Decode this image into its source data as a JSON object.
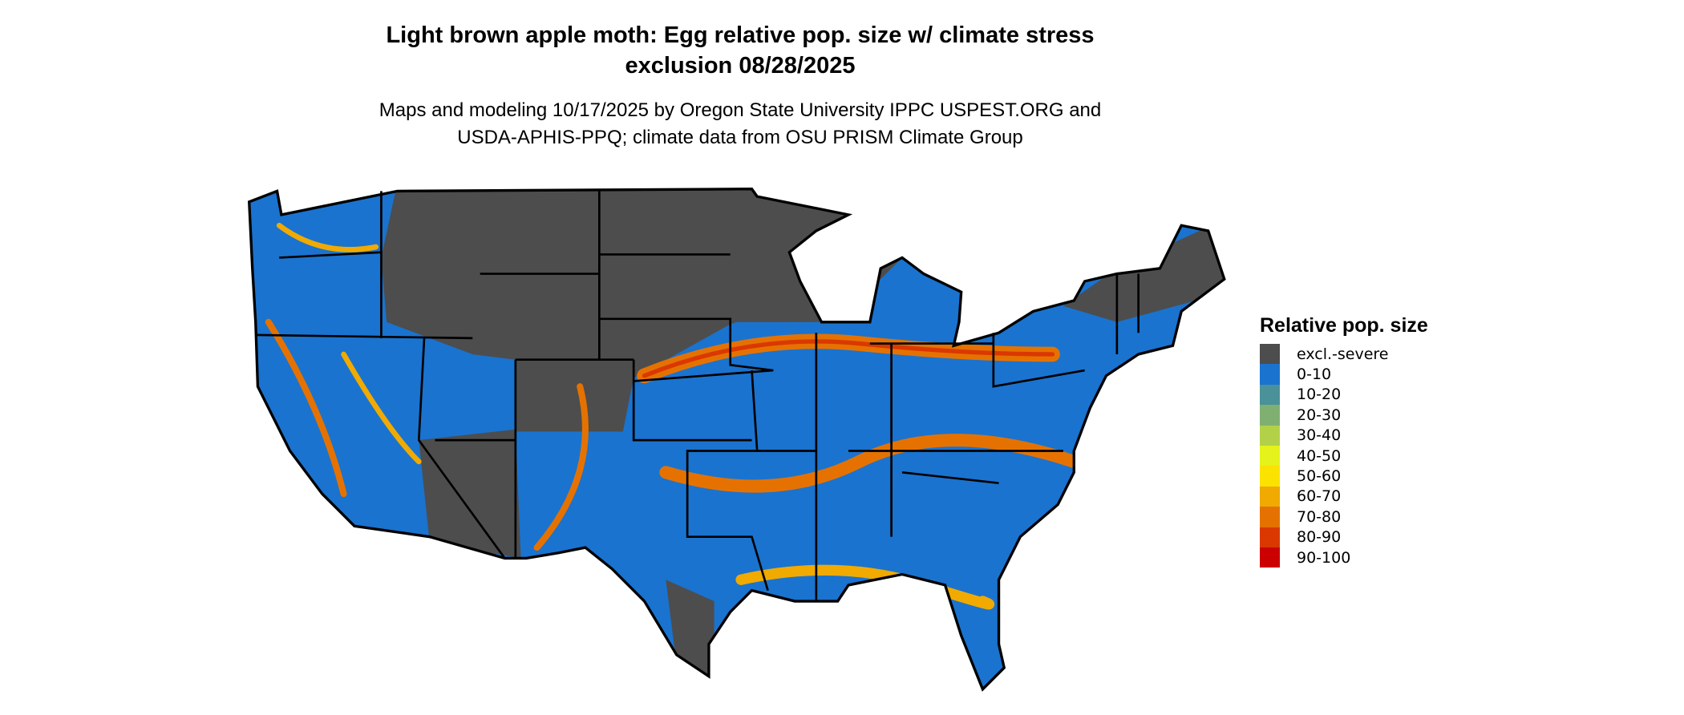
{
  "title_line1": "Light brown apple moth: Egg relative pop. size w/ climate stress",
  "title_line2": "exclusion 08/28/2025",
  "subtitle_line1": "Maps and modeling 10/17/2025 by Oregon State University IPPC USPEST.ORG and",
  "subtitle_line2": "USDA-APHIS-PPQ; climate data from OSU PRISM Climate Group",
  "legend": {
    "title": "Relative pop. size",
    "items": [
      {
        "label": "excl.-severe",
        "color": "#4d4d4d"
      },
      {
        "label": "0-10",
        "color": "#1a73cf"
      },
      {
        "label": "10-20",
        "color": "#4a9199"
      },
      {
        "label": "20-30",
        "color": "#7fb071"
      },
      {
        "label": "30-40",
        "color": "#b3d148"
      },
      {
        "label": "40-50",
        "color": "#e5f21b"
      },
      {
        "label": "50-60",
        "color": "#fbe200"
      },
      {
        "label": "60-70",
        "color": "#f0aa00"
      },
      {
        "label": "70-80",
        "color": "#e57200"
      },
      {
        "label": "80-90",
        "color": "#da3800"
      },
      {
        "label": "90-100",
        "color": "#cc0000"
      }
    ]
  }
}
